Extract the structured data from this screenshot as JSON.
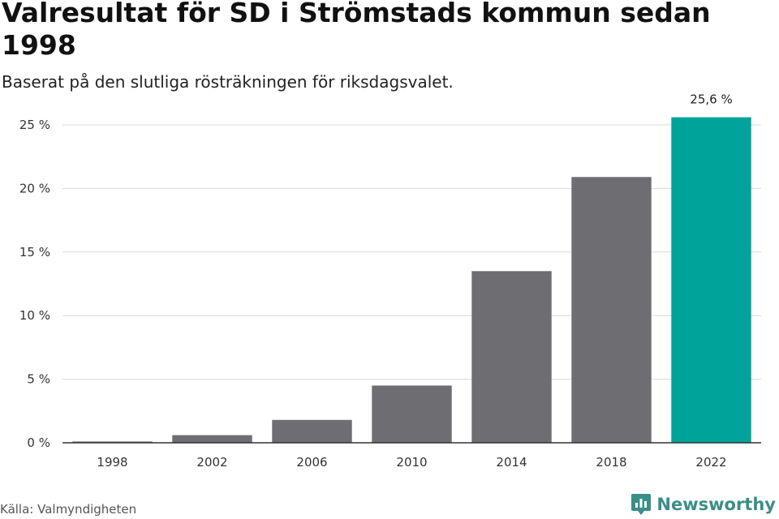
{
  "header": {
    "title": "Valresultat för SD i Strömstads kommun sedan 1998",
    "subtitle": "Baserat på den slutliga rösträkningen för riksdagsvalet."
  },
  "footer": {
    "source": "Källa: Valmyndigheten",
    "brand": "Newsworthy",
    "brand_icon": "newsworthy-logo-icon"
  },
  "colors": {
    "bar": "#6e6d72",
    "highlight": "#00a39a",
    "grid": "#d9d9d9",
    "axis": "#333333",
    "brand": "#3a8f87"
  },
  "chart_data": {
    "type": "bar",
    "title": "Valresultat för SD i Strömstads kommun sedan 1998",
    "subtitle": "Baserat på den slutliga rösträkningen för riksdagsvalet.",
    "categories": [
      "1998",
      "2002",
      "2006",
      "2010",
      "2014",
      "2018",
      "2022"
    ],
    "values": [
      0.1,
      0.6,
      1.8,
      4.5,
      13.5,
      20.9,
      25.6
    ],
    "highlight_index": 6,
    "highlight_label": "25,6 %",
    "ylim": [
      0,
      25
    ],
    "yticks": [
      0,
      5,
      10,
      15,
      20,
      25
    ],
    "ytick_labels": [
      "0 %",
      "5 %",
      "10 %",
      "15 %",
      "20 %",
      "25 %"
    ],
    "xlabel": "",
    "ylabel": "",
    "grid": true,
    "legend": "none"
  }
}
